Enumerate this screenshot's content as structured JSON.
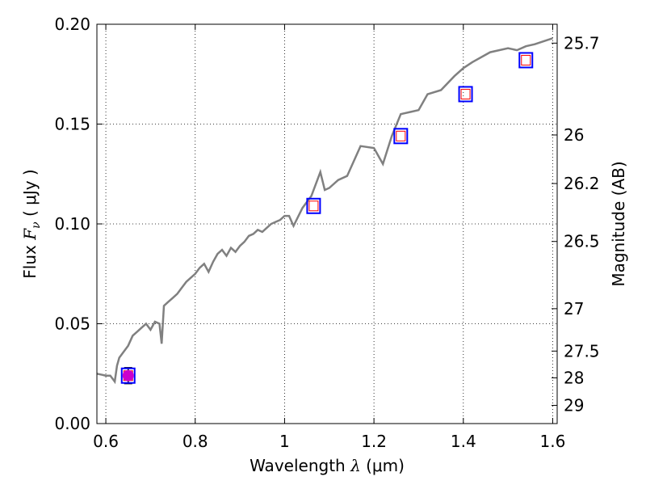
{
  "chart_data": {
    "type": "line",
    "xlabel": {
      "prefix": "Wavelength  ",
      "symbol": "λ",
      "unit": " (μm)"
    },
    "ylabel": {
      "prefix": "Flux  ",
      "symbol": "F",
      "sub": "ν",
      "unit": "  ( μJy )"
    },
    "y2label": "Magnitude (AB)",
    "xlim": [
      0.58,
      1.61
    ],
    "ylim": [
      0.0,
      0.2
    ],
    "grid": true,
    "x_ticks": [
      0.6,
      0.8,
      1.0,
      1.2,
      1.4,
      1.6
    ],
    "x_tick_labels": [
      "0.6",
      "0.8",
      "1",
      "1.2",
      "1.4",
      "1.6"
    ],
    "y_ticks": [
      0.0,
      0.05,
      0.1,
      0.15,
      0.2
    ],
    "y_tick_labels": [
      "0.00",
      "0.05",
      "0.10",
      "0.15",
      "0.20"
    ],
    "y2_ticks": [
      25.7,
      26,
      26.2,
      26.5,
      27,
      27.5,
      28,
      29
    ],
    "y2_tick_labels": [
      "25.7",
      "26",
      "26.2",
      "26.5",
      "27",
      "27.5",
      "28",
      "29"
    ],
    "model_spectrum": {
      "color": "#808080",
      "x": [
        0.58,
        0.6,
        0.61,
        0.62,
        0.625,
        0.63,
        0.64,
        0.65,
        0.66,
        0.67,
        0.68,
        0.69,
        0.7,
        0.71,
        0.72,
        0.725,
        0.73,
        0.74,
        0.75,
        0.76,
        0.77,
        0.78,
        0.79,
        0.8,
        0.81,
        0.82,
        0.83,
        0.84,
        0.85,
        0.86,
        0.87,
        0.88,
        0.89,
        0.9,
        0.91,
        0.92,
        0.93,
        0.94,
        0.95,
        0.96,
        0.97,
        0.98,
        0.99,
        1.0,
        1.01,
        1.02,
        1.04,
        1.06,
        1.08,
        1.09,
        1.1,
        1.12,
        1.14,
        1.17,
        1.2,
        1.22,
        1.24,
        1.26,
        1.3,
        1.32,
        1.35,
        1.38,
        1.4,
        1.42,
        1.46,
        1.5,
        1.52,
        1.54,
        1.56,
        1.6
      ],
      "y": [
        0.025,
        0.024,
        0.024,
        0.021,
        0.029,
        0.033,
        0.036,
        0.039,
        0.044,
        0.046,
        0.048,
        0.05,
        0.047,
        0.051,
        0.05,
        0.04,
        0.059,
        0.061,
        0.063,
        0.065,
        0.068,
        0.071,
        0.073,
        0.075,
        0.078,
        0.08,
        0.076,
        0.081,
        0.085,
        0.087,
        0.084,
        0.088,
        0.086,
        0.089,
        0.091,
        0.094,
        0.095,
        0.097,
        0.096,
        0.098,
        0.1,
        0.101,
        0.102,
        0.104,
        0.104,
        0.099,
        0.108,
        0.114,
        0.126,
        0.117,
        0.118,
        0.122,
        0.124,
        0.139,
        0.138,
        0.13,
        0.144,
        0.155,
        0.157,
        0.165,
        0.167,
        0.174,
        0.178,
        0.181,
        0.186,
        0.188,
        0.187,
        0.189,
        0.19,
        0.193
      ]
    },
    "photometry": {
      "square_edge_color": "#0000ff",
      "inner_square_color": "#ff0000",
      "filled_point_color": "#cc00cc",
      "x": [
        0.65,
        1.065,
        1.26,
        1.405,
        1.54
      ],
      "y": [
        0.024,
        0.109,
        0.144,
        0.165,
        0.182
      ],
      "yerr": [
        0.004,
        0,
        0,
        0,
        0
      ],
      "detected_point": {
        "x": 0.65,
        "y": 0.024
      }
    }
  }
}
